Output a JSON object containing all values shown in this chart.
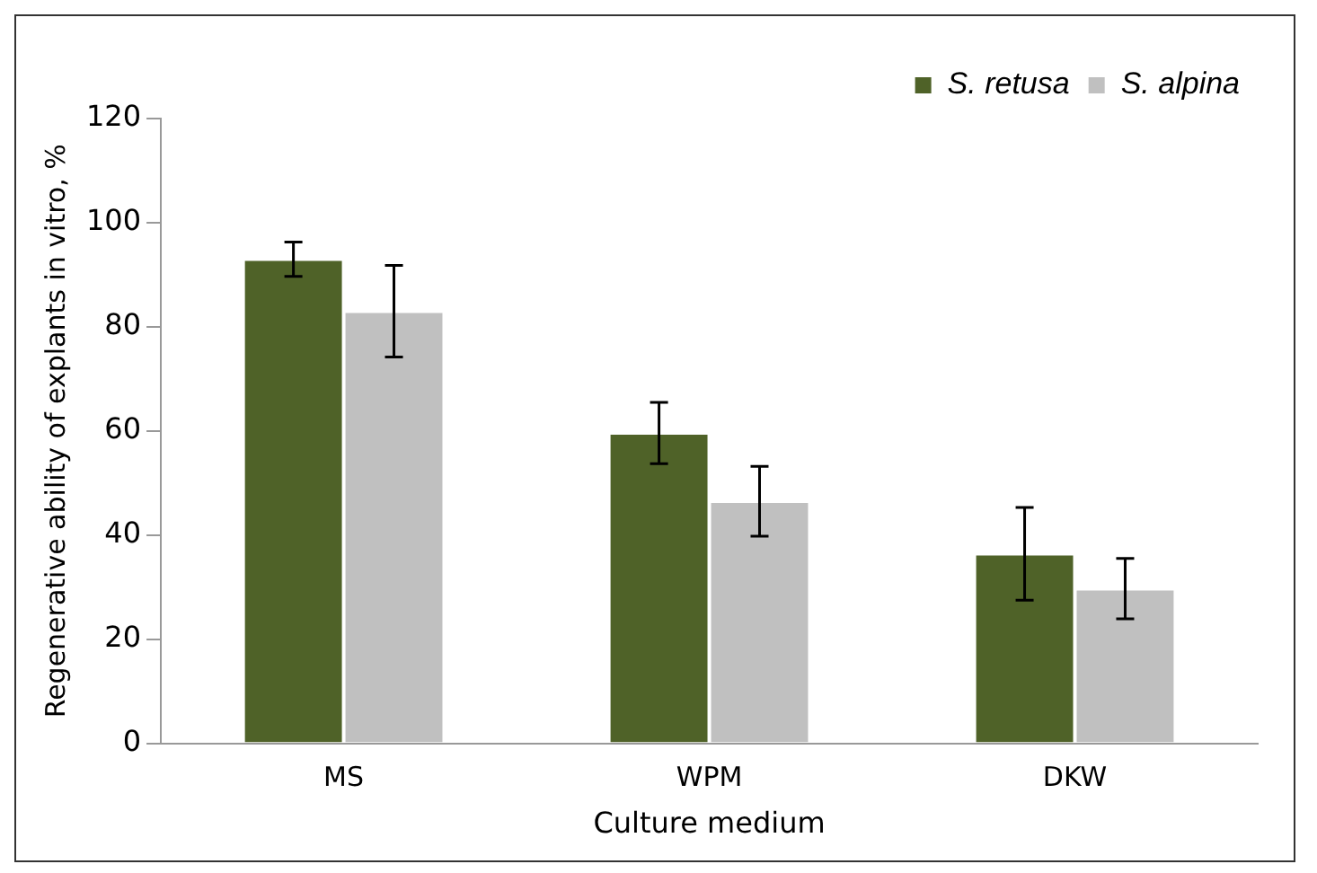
{
  "chart_data": {
    "type": "bar",
    "xlabel": "Culture medium",
    "ylabel": "Regenerative ability of explants in vitro, %",
    "categories": [
      "MS",
      "WPM",
      "DKW"
    ],
    "series": [
      {
        "name": "S. retusa",
        "color": "#4f6228",
        "values": [
          93,
          59.6,
          36.4
        ],
        "errors": [
          3.3,
          5.9,
          8.9
        ]
      },
      {
        "name": "S. alpina",
        "color": "#c0c0c0",
        "values": [
          83,
          46.5,
          29.7
        ],
        "errors": [
          8.8,
          6.7,
          5.8
        ]
      }
    ],
    "ylim": [
      0,
      120
    ],
    "yticks": [
      0,
      20,
      40,
      60,
      80,
      100,
      120
    ],
    "grid": false,
    "legend": "top right"
  }
}
